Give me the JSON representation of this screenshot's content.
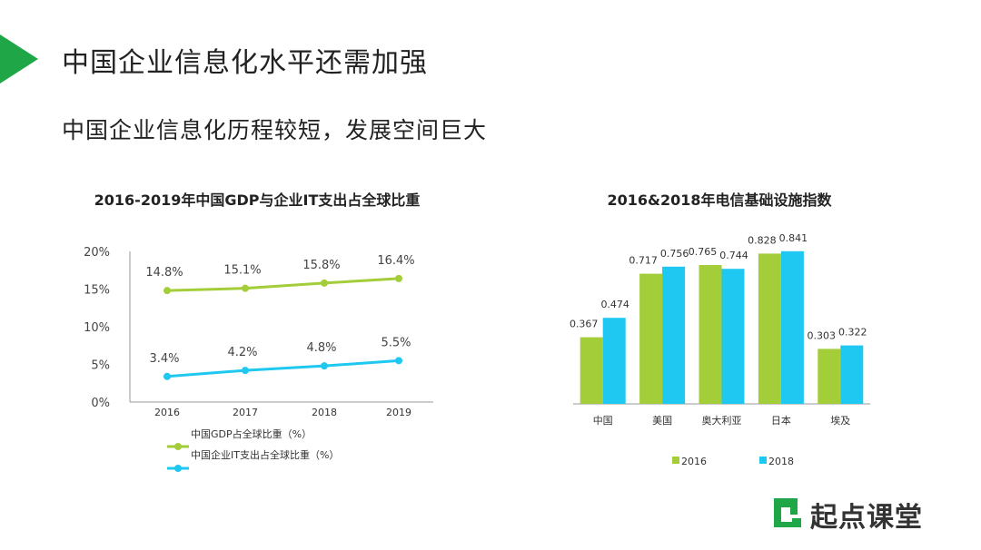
{
  "header": {
    "title": "中国企业信息化水平还需加强",
    "subtitle": "中国企业信息化历程较短，发展空间巨大"
  },
  "logo": {
    "text": "起点课堂"
  },
  "colors": {
    "accent": "#1fa646",
    "green": "#a3cd39",
    "cyan": "#1ec8f0"
  },
  "chart_data": [
    {
      "type": "line",
      "title": "2016-2019年中国GDP与企业IT支出占全球比重",
      "x": [
        "2016",
        "2017",
        "2018",
        "2019"
      ],
      "y_ticks": [
        "0%",
        "5%",
        "10%",
        "15%",
        "20%"
      ],
      "ylim": [
        0,
        20
      ],
      "series": [
        {
          "name": "中国GDP占全球比重（%）",
          "values": [
            14.8,
            15.1,
            15.8,
            16.4
          ],
          "labels": [
            "14.8%",
            "15.1%",
            "15.8%",
            "16.4%"
          ],
          "color": "#a3cd39"
        },
        {
          "name": "中国企业IT支出占全球比重（%）",
          "values": [
            3.4,
            4.2,
            4.8,
            5.5
          ],
          "labels": [
            "3.4%",
            "4.2%",
            "4.8%",
            "5.5%"
          ],
          "color": "#1ec8f0"
        }
      ]
    },
    {
      "type": "bar",
      "title": "2016&2018年电信基础设施指数",
      "categories": [
        "中国",
        "美国",
        "奥大利亚",
        "日本",
        "埃及"
      ],
      "ylim": [
        0,
        0.9
      ],
      "series": [
        {
          "name": "2016",
          "values": [
            0.367,
            0.717,
            0.765,
            0.828,
            0.303
          ],
          "labels": [
            "0.367",
            "0.717",
            "0.765",
            "0.828",
            "0.303"
          ],
          "color": "#a3cd39"
        },
        {
          "name": "2018",
          "values": [
            0.474,
            0.756,
            0.744,
            0.841,
            0.322
          ],
          "labels": [
            "0.474",
            "0.756",
            "0.744",
            "0.841",
            "0.322"
          ],
          "color": "#1ec8f0"
        }
      ]
    }
  ]
}
